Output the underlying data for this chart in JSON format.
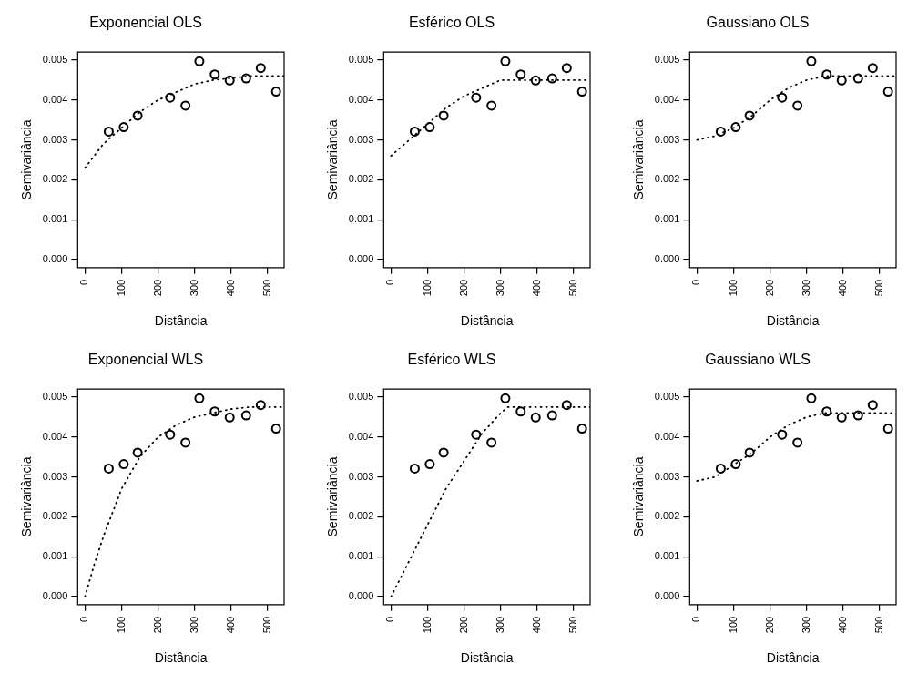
{
  "chart_data": [
    {
      "type": "scatter",
      "title": "Exponencial OLS",
      "xlabel": "Distância",
      "ylabel": "Semivariância",
      "xlim": [
        -20,
        545
      ],
      "ylim": [
        -0.0002,
        0.0052
      ],
      "xticks": [
        0,
        100,
        200,
        300,
        400,
        500
      ],
      "yticks": [
        {
          "value": 0,
          "label": "0.000"
        },
        {
          "value": 0.001,
          "label": "0.001"
        },
        {
          "value": 0.002,
          "label": "0.002"
        },
        {
          "value": 0.003,
          "label": "0.003"
        },
        {
          "value": 0.004,
          "label": "0.004"
        },
        {
          "value": 0.005,
          "label": "0.005"
        }
      ],
      "grid": false,
      "legend": false,
      "x": [
        65,
        106,
        144,
        233,
        275,
        313,
        355,
        396,
        441,
        481,
        523
      ],
      "series": [
        {
          "type": "scatter",
          "marker": "circle",
          "color": "#000000",
          "values": [
            0.00321,
            0.00332,
            0.00361,
            0.00406,
            0.00386,
            0.00497,
            0.00464,
            0.00449,
            0.00454,
            0.0048,
            0.00421
          ]
        },
        {
          "type": "line",
          "marker": "none",
          "line_style": "dotted",
          "color": "#000000",
          "x": [
            0,
            50,
            100,
            150,
            200,
            250,
            300,
            350,
            400,
            450,
            545
          ],
          "values": [
            0.0023,
            0.0029,
            0.0033,
            0.0037,
            0.004,
            0.0042,
            0.0044,
            0.0045,
            0.00455,
            0.0046,
            0.0046
          ]
        }
      ]
    },
    {
      "type": "scatter",
      "title": "Esférico OLS",
      "xlabel": "Distância",
      "ylabel": "Semivariância",
      "xlim": [
        -20,
        545
      ],
      "ylim": [
        -0.0002,
        0.0052
      ],
      "xticks": [
        0,
        100,
        200,
        300,
        400,
        500
      ],
      "yticks": [
        {
          "value": 0,
          "label": "0.000"
        },
        {
          "value": 0.001,
          "label": "0.001"
        },
        {
          "value": 0.002,
          "label": "0.002"
        },
        {
          "value": 0.003,
          "label": "0.003"
        },
        {
          "value": 0.004,
          "label": "0.004"
        },
        {
          "value": 0.005,
          "label": "0.005"
        }
      ],
      "grid": false,
      "legend": false,
      "x": [
        65,
        106,
        144,
        233,
        275,
        313,
        355,
        396,
        441,
        481,
        523
      ],
      "series": [
        {
          "type": "scatter",
          "marker": "circle",
          "color": "#000000",
          "values": [
            0.00321,
            0.00332,
            0.00361,
            0.00406,
            0.00386,
            0.00497,
            0.00464,
            0.00449,
            0.00454,
            0.0048,
            0.00421
          ]
        },
        {
          "type": "line",
          "marker": "none",
          "line_style": "dotted",
          "color": "#000000",
          "x": [
            0,
            50,
            100,
            150,
            200,
            250,
            300,
            350,
            545
          ],
          "values": [
            0.0026,
            0.003,
            0.0034,
            0.0038,
            0.0041,
            0.0043,
            0.0045,
            0.0045,
            0.0045
          ]
        }
      ]
    },
    {
      "type": "scatter",
      "title": "Gaussiano OLS",
      "xlabel": "Distância",
      "ylabel": "Semivariância",
      "xlim": [
        -20,
        545
      ],
      "ylim": [
        -0.0002,
        0.0052
      ],
      "xticks": [
        0,
        100,
        200,
        300,
        400,
        500
      ],
      "yticks": [
        {
          "value": 0,
          "label": "0.000"
        },
        {
          "value": 0.001,
          "label": "0.001"
        },
        {
          "value": 0.002,
          "label": "0.002"
        },
        {
          "value": 0.003,
          "label": "0.003"
        },
        {
          "value": 0.004,
          "label": "0.004"
        },
        {
          "value": 0.005,
          "label": "0.005"
        }
      ],
      "grid": false,
      "legend": false,
      "x": [
        65,
        106,
        144,
        233,
        275,
        313,
        355,
        396,
        441,
        481,
        523
      ],
      "series": [
        {
          "type": "scatter",
          "marker": "circle",
          "color": "#000000",
          "values": [
            0.00321,
            0.00332,
            0.00361,
            0.00406,
            0.00386,
            0.00497,
            0.00464,
            0.00449,
            0.00454,
            0.0048,
            0.00421
          ]
        },
        {
          "type": "line",
          "marker": "none",
          "line_style": "dotted",
          "color": "#000000",
          "x": [
            0,
            50,
            100,
            150,
            200,
            250,
            300,
            350,
            400,
            545
          ],
          "values": [
            0.003,
            0.0031,
            0.0033,
            0.0036,
            0.004,
            0.0043,
            0.0045,
            0.0046,
            0.0046,
            0.0046
          ]
        }
      ]
    },
    {
      "type": "scatter",
      "title": "Exponencial WLS",
      "xlabel": "Distância",
      "ylabel": "Semivariância",
      "xlim": [
        -20,
        545
      ],
      "ylim": [
        -0.0002,
        0.0052
      ],
      "xticks": [
        0,
        100,
        200,
        300,
        400,
        500
      ],
      "yticks": [
        {
          "value": 0,
          "label": "0.000"
        },
        {
          "value": 0.001,
          "label": "0.001"
        },
        {
          "value": 0.002,
          "label": "0.002"
        },
        {
          "value": 0.003,
          "label": "0.003"
        },
        {
          "value": 0.004,
          "label": "0.004"
        },
        {
          "value": 0.005,
          "label": "0.005"
        }
      ],
      "grid": false,
      "legend": false,
      "x": [
        65,
        106,
        144,
        233,
        275,
        313,
        355,
        396,
        441,
        481,
        523
      ],
      "series": [
        {
          "type": "scatter",
          "marker": "circle",
          "color": "#000000",
          "values": [
            0.00321,
            0.00332,
            0.00361,
            0.00406,
            0.00386,
            0.00497,
            0.00464,
            0.00449,
            0.00454,
            0.0048,
            0.00421
          ]
        },
        {
          "type": "line",
          "marker": "none",
          "line_style": "dotted",
          "color": "#000000",
          "x": [
            0,
            25,
            50,
            75,
            100,
            150,
            200,
            250,
            300,
            350,
            400,
            450,
            545
          ],
          "values": [
            0,
            0.0008,
            0.0015,
            0.0021,
            0.0027,
            0.0035,
            0.004,
            0.0043,
            0.0045,
            0.0046,
            0.0047,
            0.00475,
            0.00475
          ]
        }
      ]
    },
    {
      "type": "scatter",
      "title": "Esférico WLS",
      "xlabel": "Distância",
      "ylabel": "Semivariância",
      "xlim": [
        -20,
        545
      ],
      "ylim": [
        -0.0002,
        0.0052
      ],
      "xticks": [
        0,
        100,
        200,
        300,
        400,
        500
      ],
      "yticks": [
        {
          "value": 0,
          "label": "0.000"
        },
        {
          "value": 0.001,
          "label": "0.001"
        },
        {
          "value": 0.002,
          "label": "0.002"
        },
        {
          "value": 0.003,
          "label": "0.003"
        },
        {
          "value": 0.004,
          "label": "0.004"
        },
        {
          "value": 0.005,
          "label": "0.005"
        }
      ],
      "grid": false,
      "legend": false,
      "x": [
        65,
        106,
        144,
        233,
        275,
        313,
        355,
        396,
        441,
        481,
        523
      ],
      "series": [
        {
          "type": "scatter",
          "marker": "circle",
          "color": "#000000",
          "values": [
            0.00321,
            0.00332,
            0.00361,
            0.00406,
            0.00386,
            0.00497,
            0.00464,
            0.00449,
            0.00454,
            0.0048,
            0.00421
          ]
        },
        {
          "type": "line",
          "marker": "none",
          "line_style": "dotted",
          "color": "#000000",
          "x": [
            0,
            50,
            100,
            150,
            200,
            250,
            300,
            320,
            545
          ],
          "values": [
            0,
            0.0009,
            0.0018,
            0.0027,
            0.0034,
            0.0041,
            0.0046,
            0.00475,
            0.00475
          ]
        }
      ]
    },
    {
      "type": "scatter",
      "title": "Gaussiano WLS",
      "xlabel": "Distância",
      "ylabel": "Semivariância",
      "xlim": [
        -20,
        545
      ],
      "ylim": [
        -0.0002,
        0.0052
      ],
      "xticks": [
        0,
        100,
        200,
        300,
        400,
        500
      ],
      "yticks": [
        {
          "value": 0,
          "label": "0.000"
        },
        {
          "value": 0.001,
          "label": "0.001"
        },
        {
          "value": 0.002,
          "label": "0.002"
        },
        {
          "value": 0.003,
          "label": "0.003"
        },
        {
          "value": 0.004,
          "label": "0.004"
        },
        {
          "value": 0.005,
          "label": "0.005"
        }
      ],
      "grid": false,
      "legend": false,
      "x": [
        65,
        106,
        144,
        233,
        275,
        313,
        355,
        396,
        441,
        481,
        523
      ],
      "series": [
        {
          "type": "scatter",
          "marker": "circle",
          "color": "#000000",
          "values": [
            0.00321,
            0.00332,
            0.00361,
            0.00406,
            0.00386,
            0.00497,
            0.00464,
            0.00449,
            0.00454,
            0.0048,
            0.00421
          ]
        },
        {
          "type": "line",
          "marker": "none",
          "line_style": "dotted",
          "color": "#000000",
          "x": [
            0,
            50,
            100,
            150,
            200,
            250,
            300,
            350,
            545
          ],
          "values": [
            0.0029,
            0.003,
            0.0033,
            0.0036,
            0.004,
            0.0043,
            0.0045,
            0.0046,
            0.0046
          ]
        }
      ]
    }
  ]
}
